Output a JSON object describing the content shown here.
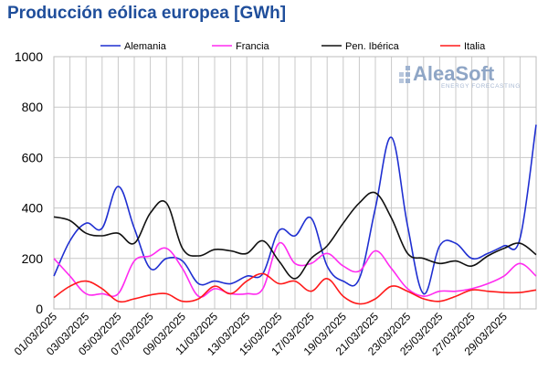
{
  "title": "Producción eólica europea [GWh]",
  "logo": {
    "name": "AleaSoft",
    "tagline": "ENERGY FORECASTING"
  },
  "chart_data": {
    "type": "line",
    "title": "Producción eólica europea [GWh]",
    "ylim": [
      0,
      1000
    ],
    "yticks": [
      0,
      200,
      400,
      600,
      800,
      1000
    ],
    "grid": true,
    "legend_position": "top",
    "x": [
      "01/03/2025",
      "02/03/2025",
      "03/03/2025",
      "04/03/2025",
      "05/03/2025",
      "06/03/2025",
      "07/03/2025",
      "08/03/2025",
      "09/03/2025",
      "10/03/2025",
      "11/03/2025",
      "12/03/2025",
      "13/03/2025",
      "14/03/2025",
      "15/03/2025",
      "16/03/2025",
      "17/03/2025",
      "18/03/2025",
      "19/03/2025",
      "20/03/2025",
      "21/03/2025",
      "22/03/2025",
      "23/03/2025",
      "24/03/2025",
      "25/03/2025",
      "26/03/2025",
      "27/03/2025",
      "28/03/2025",
      "29/03/2025",
      "30/03/2025",
      "31/03/2025"
    ],
    "xticklabels": [
      "01/03/2025",
      "03/03/2025",
      "05/03/2025",
      "07/03/2025",
      "09/03/2025",
      "11/03/2025",
      "13/03/2025",
      "15/03/2025",
      "17/03/2025",
      "19/03/2025",
      "21/03/2025",
      "23/03/2025",
      "25/03/2025",
      "27/03/2025",
      "29/03/2025"
    ],
    "series": [
      {
        "name": "Alemania",
        "color": "#1f2fd1",
        "values": [
          130,
          270,
          340,
          320,
          485,
          320,
          160,
          200,
          190,
          100,
          110,
          100,
          130,
          140,
          310,
          290,
          360,
          170,
          110,
          120,
          400,
          680,
          330,
          60,
          250,
          260,
          200,
          220,
          250,
          280,
          730
        ]
      },
      {
        "name": "Francia",
        "color": "#ff2bf0",
        "values": [
          200,
          130,
          60,
          60,
          60,
          190,
          210,
          240,
          160,
          50,
          80,
          60,
          60,
          80,
          260,
          180,
          180,
          220,
          170,
          150,
          230,
          160,
          80,
          50,
          70,
          70,
          80,
          100,
          130,
          180,
          130
        ]
      },
      {
        "name": "Pen. Ibérica",
        "color": "#111111",
        "values": [
          365,
          350,
          300,
          290,
          300,
          260,
          380,
          420,
          240,
          210,
          235,
          230,
          220,
          270,
          190,
          120,
          200,
          250,
          340,
          420,
          460,
          360,
          220,
          200,
          180,
          190,
          170,
          210,
          240,
          260,
          215
        ]
      },
      {
        "name": "Italia",
        "color": "#ff1a1a",
        "values": [
          45,
          90,
          110,
          80,
          30,
          40,
          55,
          60,
          30,
          40,
          90,
          60,
          110,
          140,
          100,
          110,
          70,
          120,
          50,
          20,
          40,
          90,
          70,
          40,
          30,
          50,
          75,
          70,
          65,
          65,
          75
        ]
      }
    ]
  }
}
